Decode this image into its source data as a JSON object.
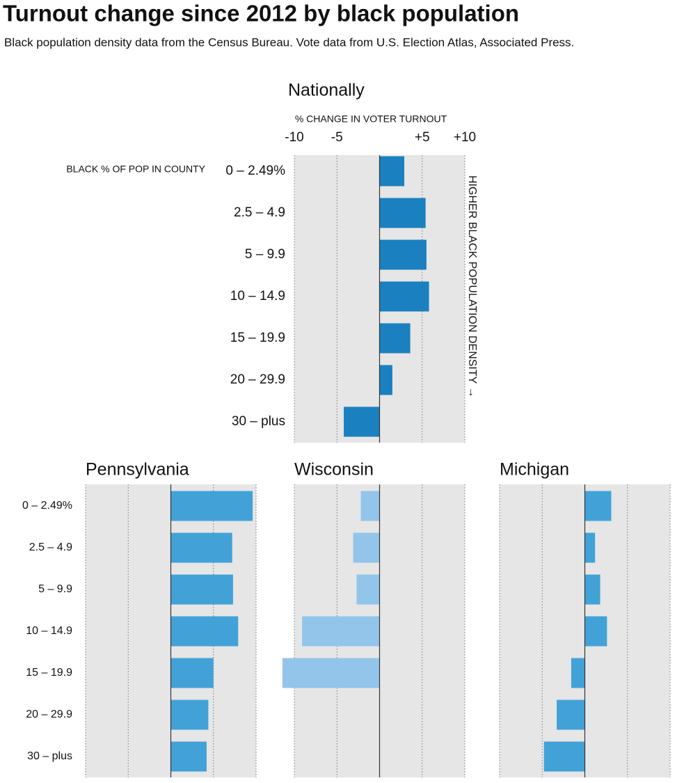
{
  "title": "Turnout change since 2012 by black population",
  "subtitle": "Black population density data from the Census Bureau. Vote data from U.S. Election Atlas, Associated Press.",
  "chart_data": [
    {
      "type": "bar",
      "title": "Nationally",
      "xlabel": "% CHANGE IN VOTER TURNOUT",
      "ylabel": "BLACK % OF POP IN COUNTY",
      "annotation": "HIGHER BLACK POPULATION DENSITY →",
      "categories": [
        "0 – 2.49%",
        "2.5 – 4.9",
        "5 – 9.9",
        "10 – 14.9",
        "15 – 19.9",
        "20 – 29.9",
        "30 – plus"
      ],
      "values": [
        2.9,
        5.4,
        5.5,
        5.8,
        3.6,
        1.5,
        -4.2
      ],
      "color": "#1b80bf",
      "xlim": [
        -10,
        10
      ],
      "xticks": [
        -10,
        -5,
        {
          "value": 5,
          "label": "+5"
        },
        {
          "value": 10,
          "label": "+10"
        }
      ],
      "grid": true
    },
    {
      "type": "bar",
      "title": "Pennsylvania",
      "categories": [
        "0 – 2.49%",
        "2.5 – 4.9",
        "5 – 9.9",
        "10 – 14.9",
        "15 – 19.9",
        "20 – 29.9",
        "30 – plus"
      ],
      "values": [
        9.6,
        7.2,
        7.3,
        7.9,
        5.0,
        4.4,
        4.2
      ],
      "color": "#42a2d8",
      "xlim": [
        -10,
        10
      ],
      "grid": true
    },
    {
      "type": "bar",
      "title": "Wisconsin",
      "values": [
        -2.2,
        -3.1,
        -2.7,
        -9.1,
        -11.4,
        null
      ],
      "color": "#93c5ea",
      "xlim": [
        -10,
        10
      ],
      "grid": true
    },
    {
      "type": "bar",
      "title": "Michigan",
      "values": [
        3.1,
        1.2,
        1.8,
        2.6,
        -1.6,
        -3.3,
        -4.8
      ],
      "color": "#42a2d8",
      "xlim": [
        -10,
        10
      ],
      "grid": true
    }
  ]
}
